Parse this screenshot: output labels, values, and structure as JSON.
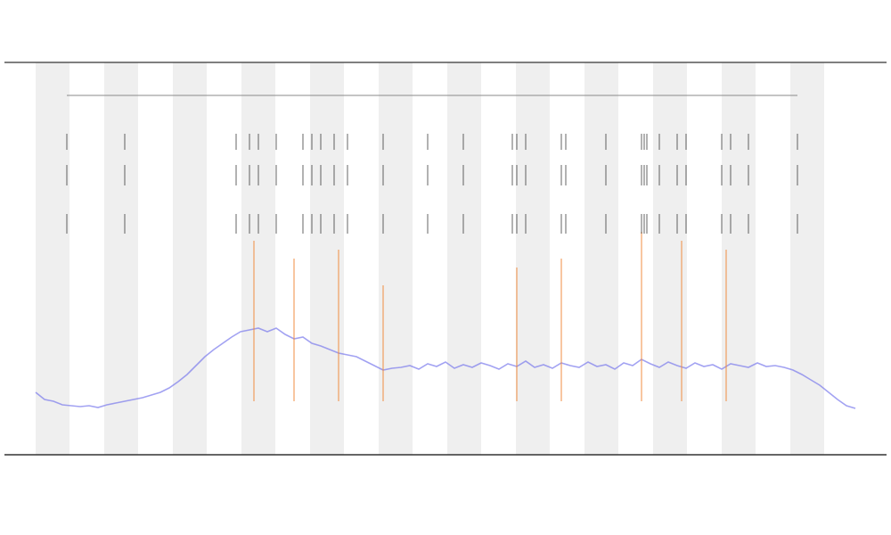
{
  "chart_data": {
    "type": "line",
    "x": [
      0,
      1,
      2,
      3,
      4,
      5,
      6,
      7,
      8,
      9,
      10,
      11,
      12,
      13,
      14,
      15,
      16,
      17,
      18,
      19,
      20,
      21,
      22,
      23,
      24,
      25,
      26,
      27,
      28,
      29,
      30,
      31,
      32,
      33,
      34,
      35,
      36,
      37,
      38,
      39,
      40,
      41,
      42,
      43,
      44,
      45,
      46,
      47,
      48,
      49,
      50,
      51,
      52,
      53,
      54,
      55,
      56,
      57,
      58,
      59,
      60,
      61,
      62,
      63,
      64,
      65,
      66,
      67,
      68,
      69,
      70,
      71,
      72,
      73,
      74,
      75,
      76,
      77,
      78,
      79,
      80,
      81,
      82,
      83,
      84,
      85,
      86,
      87,
      88,
      89,
      90,
      91,
      92
    ],
    "xlim": [
      0,
      92
    ],
    "ylim": [
      0,
      440
    ],
    "series": [
      {
        "color": "#7a7aec",
        "values": [
          70,
          62,
          60,
          56,
          55,
          54,
          55,
          53,
          56,
          58,
          60,
          62,
          64,
          67,
          70,
          75,
          82,
          90,
          100,
          110,
          118,
          125,
          132,
          138,
          140,
          142,
          138,
          142,
          135,
          130,
          132,
          125,
          122,
          118,
          114,
          112,
          110,
          105,
          100,
          95,
          97,
          98,
          100,
          96,
          102,
          99,
          104,
          97,
          101,
          98,
          103,
          100,
          96,
          102,
          99,
          105,
          98,
          101,
          97,
          103,
          100,
          98,
          104,
          99,
          101,
          96,
          103,
          100,
          107,
          102,
          98,
          104,
          100,
          97,
          103,
          99,
          101,
          96,
          102,
          100,
          98,
          103,
          99,
          100,
          98,
          95,
          90,
          84,
          78,
          70,
          62,
          55,
          52
        ]
      }
    ],
    "events": {
      "color": "#f08a3c",
      "x": [
        24.5,
        29,
        34,
        39,
        54,
        59,
        68,
        72.5,
        77.5
      ],
      "values": [
        240,
        220,
        230,
        190,
        210,
        220,
        250,
        240,
        230
      ]
    },
    "markers": {
      "color": "#222222",
      "x": [
        3.5,
        10,
        22.5,
        24,
        25,
        27,
        30,
        31,
        32,
        33.5,
        35,
        39,
        44,
        48,
        53.5,
        54,
        55,
        59,
        59.5,
        64,
        68,
        68.3,
        68.6,
        70,
        72,
        73,
        77,
        78,
        80,
        85.5
      ]
    }
  }
}
